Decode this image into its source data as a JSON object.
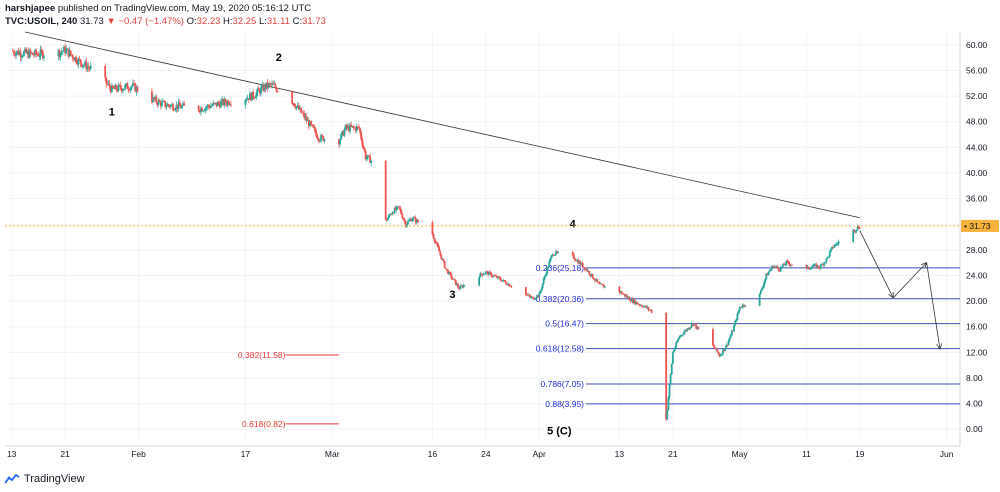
{
  "header": {
    "publisher": "harshjapee",
    "published_text": "published on TradingView.com, May 19, 2020 05:16:12 UTC",
    "symbol": "TVC:USOIL, 240",
    "last": "31.73",
    "change": "−0.47 (−1.47%)",
    "o_label": "O:",
    "o_value": "32.23",
    "h_label": "H:",
    "h_value": "32.25",
    "l_label": "L:",
    "l_value": "31.11",
    "c_label": "C:",
    "c_value": "31.73"
  },
  "footer": {
    "brand": "TradingView"
  },
  "colors": {
    "up": "#26a69a",
    "down": "#ef5350",
    "fib": "#3f51b5",
    "fib_text": "#1e2bd6",
    "red_level": "#e53935",
    "price_line": "#f5a623",
    "price_tag_bg": "#f7b23b"
  },
  "chart_data": {
    "type": "candlestick",
    "ylim": [
      -2,
      62
    ],
    "y_ticks": [
      60,
      56,
      52,
      48,
      44,
      40,
      36,
      32,
      28,
      24,
      20,
      16,
      12,
      8,
      4,
      0
    ],
    "y_tick_labels": [
      "60.00",
      "56.00",
      "52.00",
      "48.00",
      "44.00",
      "40.00",
      "36.00",
      "32.00",
      "28.00",
      "24.00",
      "20.00",
      "16.00",
      "12.00",
      "8.00",
      "4.00",
      "0.00"
    ],
    "x_ticks": [
      "13",
      "21",
      "Feb",
      "17",
      "Mar",
      "16",
      "24",
      "Apr",
      "13",
      "21",
      "May",
      "11",
      "19",
      "Jun"
    ],
    "x_tick_dates": [
      "2020-01-13",
      "2020-01-21",
      "2020-02-01",
      "2020-02-17",
      "2020-03-01",
      "2020-03-16",
      "2020-03-24",
      "2020-04-01",
      "2020-04-13",
      "2020-04-21",
      "2020-05-01",
      "2020-05-11",
      "2020-05-19",
      "2020-06-01"
    ],
    "current_price": 31.73,
    "current_price_label": "31.73",
    "price_path": [
      [
        "2020-01-13",
        59.0
      ],
      [
        "2020-01-16",
        58.5
      ],
      [
        "2020-01-20",
        58.8
      ],
      [
        "2020-01-21",
        59.2
      ],
      [
        "2020-01-23",
        57.5
      ],
      [
        "2020-01-26",
        55.5
      ],
      [
        "2020-01-28",
        53.0
      ],
      [
        "2020-01-31",
        53.6
      ],
      [
        "2020-02-03",
        51.5
      ],
      [
        "2020-02-05",
        50.6
      ],
      [
        "2020-02-07",
        50.4
      ],
      [
        "2020-02-10",
        50.0
      ],
      [
        "2020-02-13",
        50.8
      ],
      [
        "2020-02-16",
        51.5
      ],
      [
        "2020-02-18",
        52.0
      ],
      [
        "2020-02-20",
        53.5
      ],
      [
        "2020-02-21",
        53.7
      ],
      [
        "2020-02-24",
        51.3
      ],
      [
        "2020-02-26",
        48.5
      ],
      [
        "2020-02-28",
        45.5
      ],
      [
        "2020-03-02",
        45.0
      ],
      [
        "2020-03-03",
        47.0
      ],
      [
        "2020-03-05",
        47.0
      ],
      [
        "2020-03-06",
        42.5
      ],
      [
        "2020-03-08",
        41.2
      ],
      [
        "2020-03-09",
        32.5
      ],
      [
        "2020-03-10",
        34.0
      ],
      [
        "2020-03-11",
        34.5
      ],
      [
        "2020-03-12",
        32.0
      ],
      [
        "2020-03-13",
        33.0
      ],
      [
        "2020-03-16",
        30.5
      ],
      [
        "2020-03-18",
        25.0
      ],
      [
        "2020-03-19",
        23.5
      ],
      [
        "2020-03-20",
        22.0
      ],
      [
        "2020-03-23",
        24.0
      ],
      [
        "2020-03-24",
        24.5
      ],
      [
        "2020-03-26",
        23.5
      ],
      [
        "2020-03-30",
        21.0
      ],
      [
        "2020-03-31",
        20.4
      ],
      [
        "2020-04-01",
        21.0
      ],
      [
        "2020-04-02",
        24.5
      ],
      [
        "2020-04-03",
        27.5
      ],
      [
        "2020-04-06",
        27.0
      ],
      [
        "2020-04-08",
        25.0
      ],
      [
        "2020-04-10",
        22.5
      ],
      [
        "2020-04-13",
        21.5
      ],
      [
        "2020-04-15",
        20.0
      ],
      [
        "2020-04-17",
        19.0
      ],
      [
        "2020-04-19",
        17.5
      ],
      [
        "2020-04-20",
        1.5
      ],
      [
        "2020-04-21",
        12.0
      ],
      [
        "2020-04-22",
        14.5
      ],
      [
        "2020-04-24",
        16.5
      ],
      [
        "2020-04-27",
        13.0
      ],
      [
        "2020-04-28",
        11.5
      ],
      [
        "2020-04-29",
        13.0
      ],
      [
        "2020-04-30",
        15.5
      ],
      [
        "2020-05-01",
        19.0
      ],
      [
        "2020-05-04",
        21.0
      ],
      [
        "2020-05-05",
        24.0
      ],
      [
        "2020-05-06",
        25.5
      ],
      [
        "2020-05-07",
        25.0
      ],
      [
        "2020-05-08",
        26.0
      ],
      [
        "2020-05-11",
        25.0
      ],
      [
        "2020-05-12",
        25.5
      ],
      [
        "2020-05-13",
        25.3
      ],
      [
        "2020-05-14",
        26.5
      ],
      [
        "2020-05-15",
        28.5
      ],
      [
        "2020-05-18",
        31.0
      ],
      [
        "2020-05-19",
        31.73
      ]
    ],
    "trendline": [
      [
        "2020-01-15",
        62.0
      ],
      [
        "2020-05-19",
        33.0
      ]
    ],
    "wave_labels": [
      {
        "text": "1",
        "date": "2020-01-28",
        "price": 49.0
      },
      {
        "text": "2",
        "date": "2020-02-22",
        "price": 57.5
      },
      {
        "text": "3",
        "date": "2020-03-19",
        "price": 20.5
      },
      {
        "text": "4",
        "date": "2020-04-06",
        "price": 31.5
      },
      {
        "text": "5 (C)",
        "date": "2020-04-04",
        "price": -0.8
      }
    ],
    "fib_levels": [
      {
        "label": "0.236(25.18)",
        "value": 25.18
      },
      {
        "label": "0.382(20.36)",
        "value": 20.36
      },
      {
        "label": "0.5(16.47)",
        "value": 16.47
      },
      {
        "label": "0.618(12.58)",
        "value": 12.58
      },
      {
        "label": "0.786(7.05)",
        "value": 7.05
      },
      {
        "label": "0.88(3.95)",
        "value": 3.95
      }
    ],
    "red_levels": [
      {
        "label": "0.382(11.58)",
        "value": 11.58
      },
      {
        "label": "0.618(0.82)",
        "value": 0.82
      }
    ],
    "projection": [
      [
        "2020-05-19",
        31.0
      ],
      [
        "2020-05-24",
        20.5
      ],
      [
        "2020-05-29",
        26.0
      ],
      [
        "2020-05-31",
        12.5
      ]
    ]
  }
}
